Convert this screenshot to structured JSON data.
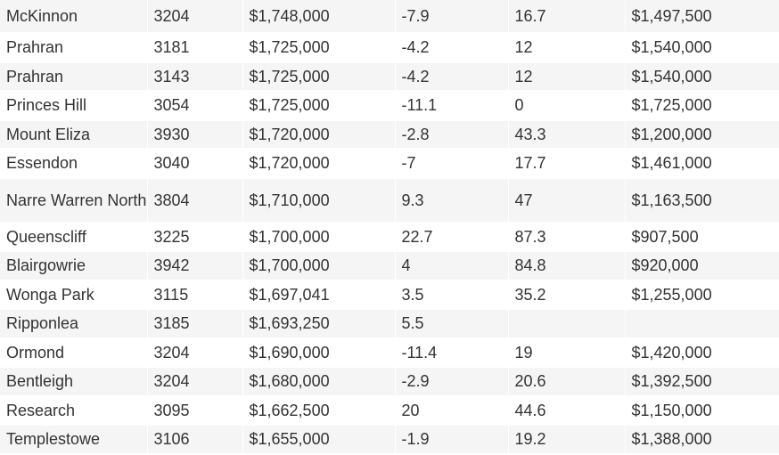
{
  "table": {
    "rows": [
      [
        "McKinnon",
        "3204",
        "$1,748,000",
        "-7.9",
        "16.7",
        "$1,497,500"
      ],
      [
        "Prahran",
        "3181",
        "$1,725,000",
        "-4.2",
        "12",
        "$1,540,000"
      ],
      [
        "Prahran",
        "3143",
        "$1,725,000",
        "-4.2",
        "12",
        "$1,540,000"
      ],
      [
        "Princes Hill",
        "3054",
        "$1,725,000",
        "-11.1",
        "0",
        "$1,725,000"
      ],
      [
        "Mount Eliza",
        "3930",
        "$1,720,000",
        "-2.8",
        "43.3",
        "$1,200,000"
      ],
      [
        "Essendon",
        "3040",
        "$1,720,000",
        "-7",
        "17.7",
        "$1,461,000"
      ],
      [
        "Narre Warren North",
        "3804",
        "$1,710,000",
        "9.3",
        "47",
        "$1,163,500"
      ],
      [
        "Queenscliff",
        "3225",
        "$1,700,000",
        "22.7",
        "87.3",
        "$907,500"
      ],
      [
        "Blairgowrie",
        "3942",
        "$1,700,000",
        "4",
        "84.8",
        "$920,000"
      ],
      [
        "Wonga Park",
        "3115",
        "$1,697,041",
        "3.5",
        "35.2",
        "$1,255,000"
      ],
      [
        "Ripponlea",
        "3185",
        "$1,693,250",
        "5.5",
        "",
        ""
      ],
      [
        "Ormond",
        "3204",
        "$1,690,000",
        "-11.4",
        "19",
        "$1,420,000"
      ],
      [
        "Bentleigh",
        "3204",
        "$1,680,000",
        "-2.9",
        "20.6",
        "$1,392,500"
      ],
      [
        "Research",
        "3095",
        "$1,662,500",
        "20",
        "44.6",
        "$1,150,000"
      ],
      [
        "Templestowe",
        "3106",
        "$1,655,000",
        "-1.9",
        "19.2",
        "$1,388,000"
      ]
    ]
  },
  "colors": {
    "stripe": "#f5f5f5",
    "text": "#333333"
  }
}
